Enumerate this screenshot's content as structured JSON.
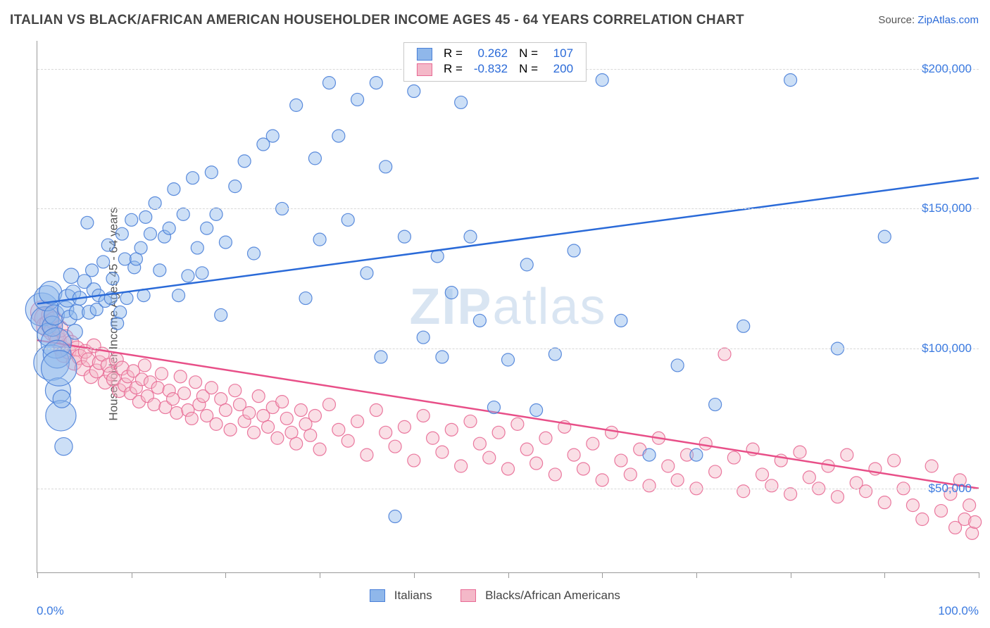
{
  "title": "ITALIAN VS BLACK/AFRICAN AMERICAN HOUSEHOLDER INCOME AGES 45 - 64 YEARS CORRELATION CHART",
  "source_label": "Source:",
  "source_name": "ZipAtlas.com",
  "ylabel": "Householder Income Ages 45 - 64 years",
  "watermark": {
    "part1": "ZIP",
    "part2": "atlas",
    "color": "rgba(120,160,210,0.28)"
  },
  "chart": {
    "type": "scatter-with-regression",
    "background_color": "#ffffff",
    "grid_color": "#d8d8d8",
    "axis_color": "#9a9a9a",
    "xlim": [
      0,
      100
    ],
    "ylim": [
      20000,
      210000
    ],
    "xtick_percent_step": 10,
    "ytick_values": [
      50000,
      100000,
      150000,
      200000
    ],
    "ytick_labels": [
      "$50,000",
      "$100,000",
      "$150,000",
      "$200,000"
    ],
    "ytick_color": "#3b7ae0",
    "xaxis_min_label": "0.0%",
    "xaxis_max_label": "100.0%",
    "xaxis_label_color": "#3b7ae0",
    "marker_base_radius": 9,
    "marker_opacity": 0.45,
    "marker_stroke_opacity": 0.9,
    "trend_line_width": 2.5
  },
  "series": {
    "italians": {
      "label": "Italians",
      "color_fill": "#8fb7ea",
      "color_stroke": "#4a80d8",
      "trend_color": "#2a6ad8",
      "R": "0.262",
      "N": "107",
      "trend": {
        "x1": 0,
        "y1": 116000,
        "x2": 100,
        "y2": 161000
      },
      "points": [
        [
          0.5,
          114000,
          2.6
        ],
        [
          0.8,
          110000,
          2.2
        ],
        [
          1.0,
          118000,
          2.0
        ],
        [
          1.2,
          105000,
          1.8
        ],
        [
          1.4,
          120000,
          1.8
        ],
        [
          1.5,
          95000,
          2.8
        ],
        [
          1.6,
          108000,
          1.6
        ],
        [
          1.8,
          112000,
          1.6
        ],
        [
          2.0,
          102000,
          2.4
        ],
        [
          2.1,
          98000,
          2.2
        ],
        [
          2.2,
          85000,
          2.0
        ],
        [
          2.3,
          93000,
          2.8
        ],
        [
          2.5,
          76000,
          2.4
        ],
        [
          2.6,
          82000,
          1.4
        ],
        [
          2.8,
          65000,
          1.4
        ],
        [
          3.0,
          114000,
          1.3
        ],
        [
          3.2,
          118000,
          1.4
        ],
        [
          3.4,
          111000,
          1.2
        ],
        [
          3.6,
          126000,
          1.2
        ],
        [
          3.8,
          120000,
          1.2
        ],
        [
          4.0,
          106000,
          1.2
        ],
        [
          4.2,
          113000,
          1.2
        ],
        [
          4.5,
          118000,
          1.1
        ],
        [
          5.0,
          124000,
          1.1
        ],
        [
          5.3,
          145000,
          1.0
        ],
        [
          5.5,
          113000,
          1.1
        ],
        [
          5.8,
          128000,
          1.0
        ],
        [
          6.0,
          121000,
          1.1
        ],
        [
          6.3,
          114000,
          1.0
        ],
        [
          6.5,
          119000,
          1.0
        ],
        [
          7.0,
          131000,
          1.0
        ],
        [
          7.2,
          117000,
          1.0
        ],
        [
          7.5,
          137000,
          1.0
        ],
        [
          7.8,
          118000,
          1.0
        ],
        [
          8.0,
          125000,
          1.0
        ],
        [
          8.5,
          109000,
          1.0
        ],
        [
          8.8,
          113000,
          1.0
        ],
        [
          9.0,
          141000,
          1.0
        ],
        [
          9.3,
          132000,
          1.0
        ],
        [
          9.5,
          118000,
          1.0
        ],
        [
          10.0,
          146000,
          1.0
        ],
        [
          10.3,
          129000,
          1.0
        ],
        [
          10.5,
          132000,
          1.0
        ],
        [
          11.0,
          136000,
          1.0
        ],
        [
          11.3,
          119000,
          1.0
        ],
        [
          11.5,
          147000,
          1.0
        ],
        [
          12.0,
          141000,
          1.0
        ],
        [
          12.5,
          152000,
          1.0
        ],
        [
          13.0,
          128000,
          1.0
        ],
        [
          13.5,
          140000,
          1.0
        ],
        [
          14.0,
          143000,
          1.0
        ],
        [
          14.5,
          157000,
          1.0
        ],
        [
          15.0,
          119000,
          1.0
        ],
        [
          15.5,
          148000,
          1.0
        ],
        [
          16.0,
          126000,
          1.0
        ],
        [
          16.5,
          161000,
          1.0
        ],
        [
          17.0,
          136000,
          1.0
        ],
        [
          17.5,
          127000,
          1.0
        ],
        [
          18.0,
          143000,
          1.0
        ],
        [
          18.5,
          163000,
          1.0
        ],
        [
          19.0,
          148000,
          1.0
        ],
        [
          19.5,
          112000,
          1.0
        ],
        [
          20.0,
          138000,
          1.0
        ],
        [
          21.0,
          158000,
          1.0
        ],
        [
          22.0,
          167000,
          1.0
        ],
        [
          23.0,
          134000,
          1.0
        ],
        [
          24.0,
          173000,
          1.0
        ],
        [
          25.0,
          176000,
          1.0
        ],
        [
          26.0,
          150000,
          1.0
        ],
        [
          27.5,
          187000,
          1.0
        ],
        [
          28.5,
          118000,
          1.0
        ],
        [
          29.5,
          168000,
          1.0
        ],
        [
          30.0,
          139000,
          1.0
        ],
        [
          31.0,
          195000,
          1.0
        ],
        [
          32.0,
          176000,
          1.0
        ],
        [
          33.0,
          146000,
          1.0
        ],
        [
          34.0,
          189000,
          1.0
        ],
        [
          35.0,
          127000,
          1.0
        ],
        [
          36.0,
          195000,
          1.0
        ],
        [
          36.5,
          97000,
          1.0
        ],
        [
          37.0,
          165000,
          1.0
        ],
        [
          38.0,
          40000,
          1.0
        ],
        [
          39.0,
          140000,
          1.0
        ],
        [
          40.0,
          192000,
          1.0
        ],
        [
          41.0,
          104000,
          1.0
        ],
        [
          42.5,
          133000,
          1.0
        ],
        [
          43.0,
          97000,
          1.0
        ],
        [
          44.0,
          120000,
          1.0
        ],
        [
          45.0,
          188000,
          1.0
        ],
        [
          46.0,
          140000,
          1.0
        ],
        [
          47.0,
          110000,
          1.0
        ],
        [
          48.5,
          79000,
          1.0
        ],
        [
          50.0,
          96000,
          1.0
        ],
        [
          52.0,
          130000,
          1.0
        ],
        [
          53.0,
          78000,
          1.0
        ],
        [
          55.0,
          98000,
          1.0
        ],
        [
          57.0,
          135000,
          1.0
        ],
        [
          60.0,
          196000,
          1.0
        ],
        [
          62.0,
          110000,
          1.0
        ],
        [
          65.0,
          62000,
          1.0
        ],
        [
          68.0,
          94000,
          1.0
        ],
        [
          70.0,
          62000,
          1.0
        ],
        [
          72.0,
          80000,
          1.0
        ],
        [
          75.0,
          108000,
          1.0
        ],
        [
          80.0,
          196000,
          1.0
        ],
        [
          85.0,
          100000,
          1.0
        ],
        [
          90.0,
          140000,
          1.0
        ]
      ]
    },
    "blacks": {
      "label": "Blacks/African Americans",
      "color_fill": "#f4b8c8",
      "color_stroke": "#e86a95",
      "trend_color": "#e84f88",
      "R": "-0.832",
      "N": "200",
      "trend": {
        "x1": 0,
        "y1": 103000,
        "x2": 100,
        "y2": 50000
      },
      "points": [
        [
          0.5,
          113000,
          1.8
        ],
        [
          0.8,
          111000,
          1.6
        ],
        [
          1.0,
          108000,
          1.6
        ],
        [
          1.2,
          109000,
          1.4
        ],
        [
          1.4,
          112000,
          1.4
        ],
        [
          1.6,
          106000,
          1.4
        ],
        [
          1.8,
          110000,
          1.4
        ],
        [
          2.0,
          105000,
          1.3
        ],
        [
          2.2,
          103000,
          1.3
        ],
        [
          2.4,
          107000,
          1.3
        ],
        [
          2.6,
          100000,
          1.3
        ],
        [
          2.8,
          98000,
          1.3
        ],
        [
          3.0,
          104000,
          1.2
        ],
        [
          3.3,
          99000,
          1.2
        ],
        [
          3.6,
          102000,
          1.2
        ],
        [
          3.9,
          95000,
          1.2
        ],
        [
          4.2,
          100000,
          1.2
        ],
        [
          4.5,
          97000,
          1.2
        ],
        [
          4.8,
          93000,
          1.2
        ],
        [
          5.1,
          99000,
          1.1
        ],
        [
          5.4,
          96000,
          1.1
        ],
        [
          5.7,
          90000,
          1.1
        ],
        [
          6.0,
          101000,
          1.1
        ],
        [
          6.3,
          92000,
          1.1
        ],
        [
          6.6,
          95000,
          1.1
        ],
        [
          6.9,
          98000,
          1.1
        ],
        [
          7.2,
          88000,
          1.1
        ],
        [
          7.5,
          94000,
          1.1
        ],
        [
          7.8,
          91000,
          1.1
        ],
        [
          8.1,
          89000,
          1.1
        ],
        [
          8.4,
          96000,
          1.1
        ],
        [
          8.7,
          85000,
          1.1
        ],
        [
          9.0,
          93000,
          1.1
        ],
        [
          9.3,
          87000,
          1.1
        ],
        [
          9.6,
          90000,
          1.0
        ],
        [
          9.9,
          84000,
          1.0
        ],
        [
          10.2,
          92000,
          1.0
        ],
        [
          10.5,
          86000,
          1.0
        ],
        [
          10.8,
          81000,
          1.0
        ],
        [
          11.1,
          89000,
          1.0
        ],
        [
          11.4,
          94000,
          1.0
        ],
        [
          11.7,
          83000,
          1.0
        ],
        [
          12.0,
          88000,
          1.0
        ],
        [
          12.4,
          80000,
          1.0
        ],
        [
          12.8,
          86000,
          1.0
        ],
        [
          13.2,
          91000,
          1.0
        ],
        [
          13.6,
          79000,
          1.0
        ],
        [
          14.0,
          85000,
          1.0
        ],
        [
          14.4,
          82000,
          1.0
        ],
        [
          14.8,
          77000,
          1.0
        ],
        [
          15.2,
          90000,
          1.0
        ],
        [
          15.6,
          84000,
          1.0
        ],
        [
          16.0,
          78000,
          1.0
        ],
        [
          16.4,
          75000,
          1.0
        ],
        [
          16.8,
          88000,
          1.0
        ],
        [
          17.2,
          80000,
          1.0
        ],
        [
          17.6,
          83000,
          1.0
        ],
        [
          18.0,
          76000,
          1.0
        ],
        [
          18.5,
          86000,
          1.0
        ],
        [
          19.0,
          73000,
          1.0
        ],
        [
          19.5,
          82000,
          1.0
        ],
        [
          20.0,
          78000,
          1.0
        ],
        [
          20.5,
          71000,
          1.0
        ],
        [
          21.0,
          85000,
          1.0
        ],
        [
          21.5,
          80000,
          1.0
        ],
        [
          22.0,
          74000,
          1.0
        ],
        [
          22.5,
          77000,
          1.0
        ],
        [
          23.0,
          70000,
          1.0
        ],
        [
          23.5,
          83000,
          1.0
        ],
        [
          24.0,
          76000,
          1.0
        ],
        [
          24.5,
          72000,
          1.0
        ],
        [
          25.0,
          79000,
          1.0
        ],
        [
          25.5,
          68000,
          1.0
        ],
        [
          26.0,
          81000,
          1.0
        ],
        [
          26.5,
          75000,
          1.0
        ],
        [
          27.0,
          70000,
          1.0
        ],
        [
          27.5,
          66000,
          1.0
        ],
        [
          28.0,
          78000,
          1.0
        ],
        [
          28.5,
          73000,
          1.0
        ],
        [
          29.0,
          69000,
          1.0
        ],
        [
          29.5,
          76000,
          1.0
        ],
        [
          30.0,
          64000,
          1.0
        ],
        [
          31.0,
          80000,
          1.0
        ],
        [
          32.0,
          71000,
          1.0
        ],
        [
          33.0,
          67000,
          1.0
        ],
        [
          34.0,
          74000,
          1.0
        ],
        [
          35.0,
          62000,
          1.0
        ],
        [
          36.0,
          78000,
          1.0
        ],
        [
          37.0,
          70000,
          1.0
        ],
        [
          38.0,
          65000,
          1.0
        ],
        [
          39.0,
          72000,
          1.0
        ],
        [
          40.0,
          60000,
          1.0
        ],
        [
          41.0,
          76000,
          1.0
        ],
        [
          42.0,
          68000,
          1.0
        ],
        [
          43.0,
          63000,
          1.0
        ],
        [
          44.0,
          71000,
          1.0
        ],
        [
          45.0,
          58000,
          1.0
        ],
        [
          46.0,
          74000,
          1.0
        ],
        [
          47.0,
          66000,
          1.0
        ],
        [
          48.0,
          61000,
          1.0
        ],
        [
          49.0,
          70000,
          1.0
        ],
        [
          50.0,
          57000,
          1.0
        ],
        [
          51.0,
          73000,
          1.0
        ],
        [
          52.0,
          64000,
          1.0
        ],
        [
          53.0,
          59000,
          1.0
        ],
        [
          54.0,
          68000,
          1.0
        ],
        [
          55.0,
          55000,
          1.0
        ],
        [
          56.0,
          72000,
          1.0
        ],
        [
          57.0,
          62000,
          1.0
        ],
        [
          58.0,
          57000,
          1.0
        ],
        [
          59.0,
          66000,
          1.0
        ],
        [
          60.0,
          53000,
          1.0
        ],
        [
          61.0,
          70000,
          1.0
        ],
        [
          62.0,
          60000,
          1.0
        ],
        [
          63.0,
          55000,
          1.0
        ],
        [
          64.0,
          64000,
          1.0
        ],
        [
          65.0,
          51000,
          1.0
        ],
        [
          66.0,
          68000,
          1.0
        ],
        [
          67.0,
          58000,
          1.0
        ],
        [
          68.0,
          53000,
          1.0
        ],
        [
          69.0,
          62000,
          1.0
        ],
        [
          70.0,
          50000,
          1.0
        ],
        [
          71.0,
          66000,
          1.0
        ],
        [
          72.0,
          56000,
          1.0
        ],
        [
          73.0,
          98000,
          1.0
        ],
        [
          74.0,
          61000,
          1.0
        ],
        [
          75.0,
          49000,
          1.0
        ],
        [
          76.0,
          64000,
          1.0
        ],
        [
          77.0,
          55000,
          1.0
        ],
        [
          78.0,
          51000,
          1.0
        ],
        [
          79.0,
          60000,
          1.0
        ],
        [
          80.0,
          48000,
          1.0
        ],
        [
          81.0,
          63000,
          1.0
        ],
        [
          82.0,
          54000,
          1.0
        ],
        [
          83.0,
          50000,
          1.0
        ],
        [
          84.0,
          58000,
          1.0
        ],
        [
          85.0,
          47000,
          1.0
        ],
        [
          86.0,
          62000,
          1.0
        ],
        [
          87.0,
          52000,
          1.0
        ],
        [
          88.0,
          49000,
          1.0
        ],
        [
          89.0,
          57000,
          1.0
        ],
        [
          90.0,
          45000,
          1.0
        ],
        [
          91.0,
          60000,
          1.0
        ],
        [
          92.0,
          50000,
          1.0
        ],
        [
          93.0,
          44000,
          1.0
        ],
        [
          94.0,
          39000,
          1.0
        ],
        [
          95.0,
          58000,
          1.0
        ],
        [
          96.0,
          42000,
          1.0
        ],
        [
          97.0,
          48000,
          1.0
        ],
        [
          97.5,
          36000,
          1.0
        ],
        [
          98.0,
          53000,
          1.0
        ],
        [
          98.5,
          39000,
          1.0
        ],
        [
          99.0,
          44000,
          1.0
        ],
        [
          99.3,
          34000,
          1.0
        ],
        [
          99.6,
          38000,
          1.0
        ]
      ]
    }
  },
  "legend_top": {
    "R_label": "R =",
    "N_label": "N =",
    "value_color": "#2a6ad8"
  },
  "legend_bottom": {
    "items": [
      "italians",
      "blacks"
    ]
  }
}
